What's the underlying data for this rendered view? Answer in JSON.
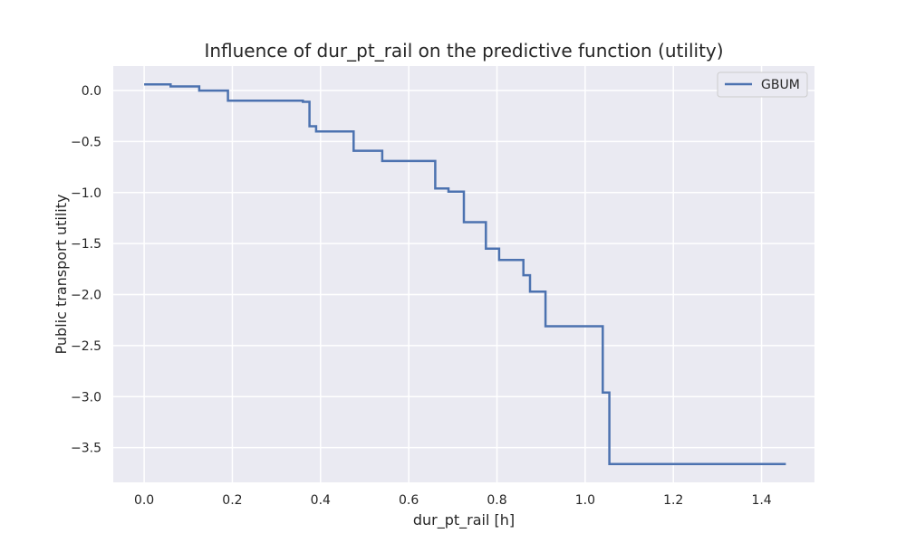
{
  "chart_data": {
    "type": "line",
    "title": "Influence of dur_pt_rail on the predictive function (utility)",
    "xlabel": "dur_pt_rail [h]",
    "ylabel": "Public transport utility",
    "xlim": [
      -0.07,
      1.52
    ],
    "ylim": [
      -3.84,
      0.24
    ],
    "xticks": [
      0.0,
      0.2,
      0.4,
      0.6,
      0.8,
      1.0,
      1.2,
      1.4
    ],
    "xtick_labels": [
      "0.0",
      "0.2",
      "0.4",
      "0.6",
      "0.8",
      "1.0",
      "1.2",
      "1.4"
    ],
    "yticks": [
      0.0,
      -0.5,
      -1.0,
      -1.5,
      -2.0,
      -2.5,
      -3.0,
      -3.5
    ],
    "ytick_labels": [
      "0.0",
      "−0.5",
      "−1.0",
      "−1.5",
      "−2.0",
      "−2.5",
      "−3.0",
      "−3.5"
    ],
    "grid": true,
    "legend_position": "top-right",
    "series": [
      {
        "name": "GBUM",
        "color": "#4c72b0",
        "step": "post",
        "x": [
          0.0,
          0.06,
          0.125,
          0.19,
          0.29,
          0.36,
          0.375,
          0.39,
          0.475,
          0.54,
          0.66,
          0.69,
          0.725,
          0.775,
          0.805,
          0.86,
          0.875,
          0.91,
          1.04,
          1.055,
          1.455
        ],
        "y": [
          0.06,
          0.04,
          0.0,
          -0.1,
          -0.1,
          -0.11,
          -0.35,
          -0.4,
          -0.59,
          -0.69,
          -0.96,
          -0.99,
          -1.29,
          -1.55,
          -1.66,
          -1.81,
          -1.97,
          -2.31,
          -2.96,
          -3.66,
          -3.66
        ]
      }
    ]
  }
}
